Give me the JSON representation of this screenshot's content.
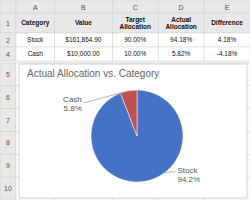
{
  "chart_data": {
    "type": "pie",
    "title": "Actual Allocation vs. Category",
    "categories": [
      "Stock",
      "Cash"
    ],
    "values": [
      94.18,
      5.82
    ],
    "value_labels": [
      "94.2%",
      "5.8%"
    ],
    "colors": [
      "#4472C4",
      "#C0504D"
    ]
  },
  "table": {
    "columns": [
      "A",
      "B",
      "C",
      "D",
      "E"
    ],
    "row_numbers": [
      "1",
      "2",
      "4",
      "5",
      "6",
      "7",
      "8",
      "9",
      "10"
    ],
    "headers": [
      "Category",
      "Value",
      "Target\nAllocation",
      "Actual\nAllocation",
      "Difference"
    ],
    "rows": [
      [
        "Stock",
        "$161,864.90",
        "90.00%",
        "94.18%",
        "4.18%"
      ],
      [
        "Cash",
        "$10,000.00",
        "10.00%",
        "5.82%",
        "-4.18%"
      ]
    ]
  }
}
